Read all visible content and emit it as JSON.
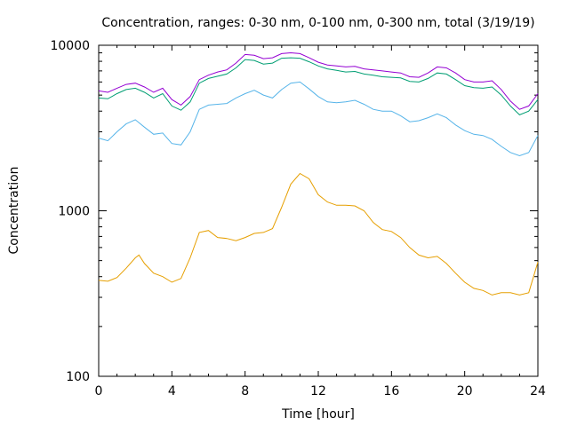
{
  "chart_data": {
    "type": "line",
    "title": "Concentration, ranges: 0-30 nm, 0-100 nm, 0-300 nm, total (3/19/19)",
    "xlabel": "Time [hour]",
    "ylabel": "Concentration",
    "xlim": [
      0,
      24
    ],
    "ylim": [
      100,
      10000
    ],
    "yscale": "log",
    "grid": false,
    "legend": "none",
    "x_ticks": [
      0,
      4,
      8,
      12,
      16,
      20,
      24
    ],
    "x_tick_labels": [
      "0",
      "4",
      "8",
      "12",
      "16",
      "20",
      "24"
    ],
    "y_major_ticks": [
      100,
      1000,
      10000
    ],
    "y_tick_labels": [
      "100",
      "1000",
      "10000"
    ],
    "series": [
      {
        "color": "#e69f00",
        "x": [
          0,
          0.5,
          1,
          1.5,
          2,
          2.2,
          2.5,
          3,
          3.5,
          4,
          4.5,
          5,
          5.5,
          6,
          6.5,
          7,
          7.5,
          8,
          8.5,
          9,
          9.5,
          10,
          10.5,
          11,
          11.5,
          12,
          12.5,
          13,
          13.5,
          14,
          14.5,
          15,
          15.5,
          16,
          16.5,
          17,
          17.5,
          18,
          18.5,
          19,
          19.5,
          20,
          20.5,
          21,
          21.5,
          22,
          22.5,
          23,
          23.5,
          24
        ],
        "y": [
          380,
          375,
          395,
          450,
          520,
          540,
          480,
          420,
          400,
          370,
          390,
          520,
          740,
          760,
          690,
          680,
          660,
          690,
          730,
          740,
          780,
          1050,
          1450,
          1680,
          1560,
          1250,
          1130,
          1080,
          1080,
          1070,
          1000,
          850,
          770,
          750,
          690,
          600,
          540,
          520,
          530,
          480,
          420,
          370,
          340,
          330,
          310,
          320,
          320,
          310,
          320,
          490
        ]
      },
      {
        "color": "#56b4e9",
        "x": [
          0,
          0.5,
          1,
          1.5,
          2,
          2.5,
          3,
          3.5,
          4,
          4.5,
          5,
          5.5,
          6,
          6.5,
          7,
          7.5,
          8,
          8.5,
          9,
          9.5,
          10,
          10.5,
          11,
          11.5,
          12,
          12.5,
          13,
          13.5,
          14,
          14.5,
          15,
          15.5,
          16,
          16.5,
          17,
          17.5,
          18,
          18.5,
          19,
          19.5,
          20,
          20.5,
          21,
          21.5,
          22,
          22.5,
          23,
          23.5,
          24
        ],
        "y": [
          2750,
          2650,
          3000,
          3350,
          3550,
          3200,
          2900,
          2950,
          2550,
          2500,
          3000,
          4100,
          4350,
          4400,
          4450,
          4800,
          5100,
          5350,
          5000,
          4800,
          5400,
          5900,
          6000,
          5450,
          4900,
          4550,
          4500,
          4550,
          4650,
          4400,
          4100,
          4000,
          4000,
          3750,
          3450,
          3500,
          3650,
          3850,
          3650,
          3300,
          3050,
          2900,
          2850,
          2700,
          2450,
          2250,
          2150,
          2250,
          2850
        ]
      },
      {
        "color": "#009e73",
        "x": [
          0,
          0.5,
          1,
          1.5,
          2,
          2.5,
          3,
          3.5,
          4,
          4.5,
          5,
          5.5,
          6,
          6.5,
          7,
          7.5,
          8,
          8.5,
          9,
          9.5,
          10,
          10.5,
          11,
          11.5,
          12,
          12.5,
          13,
          13.5,
          14,
          14.5,
          15,
          15.5,
          16,
          16.5,
          17,
          17.5,
          18,
          18.5,
          19,
          19.5,
          20,
          20.5,
          21,
          21.5,
          22,
          22.5,
          23,
          23.5,
          24
        ],
        "y": [
          4800,
          4750,
          5100,
          5400,
          5500,
          5200,
          4800,
          5100,
          4300,
          4050,
          4550,
          5900,
          6300,
          6500,
          6700,
          7300,
          8200,
          8100,
          7700,
          7800,
          8350,
          8400,
          8350,
          7950,
          7500,
          7200,
          7050,
          6900,
          6950,
          6700,
          6600,
          6450,
          6400,
          6350,
          6050,
          6000,
          6300,
          6800,
          6700,
          6200,
          5700,
          5550,
          5500,
          5600,
          5000,
          4300,
          3800,
          4000,
          4700
        ]
      },
      {
        "color": "#9400d3",
        "x": [
          0,
          0.5,
          1,
          1.5,
          2,
          2.5,
          3,
          3.5,
          4,
          4.5,
          5,
          5.5,
          6,
          6.5,
          7,
          7.5,
          8,
          8.5,
          9,
          9.5,
          10,
          10.5,
          11,
          11.5,
          12,
          12.5,
          13,
          13.5,
          14,
          14.5,
          15,
          15.5,
          16,
          16.5,
          17,
          17.5,
          18,
          18.5,
          19,
          19.5,
          20,
          20.5,
          21,
          21.5,
          22,
          22.5,
          23,
          23.5,
          24
        ],
        "y": [
          5300,
          5200,
          5500,
          5800,
          5900,
          5600,
          5200,
          5500,
          4700,
          4350,
          4900,
          6200,
          6600,
          6900,
          7100,
          7800,
          8800,
          8700,
          8300,
          8400,
          8900,
          9000,
          8900,
          8400,
          7900,
          7600,
          7500,
          7400,
          7450,
          7200,
          7100,
          7000,
          6900,
          6800,
          6450,
          6400,
          6800,
          7400,
          7300,
          6800,
          6200,
          6000,
          6000,
          6100,
          5400,
          4600,
          4100,
          4300,
          5100
        ]
      }
    ]
  }
}
